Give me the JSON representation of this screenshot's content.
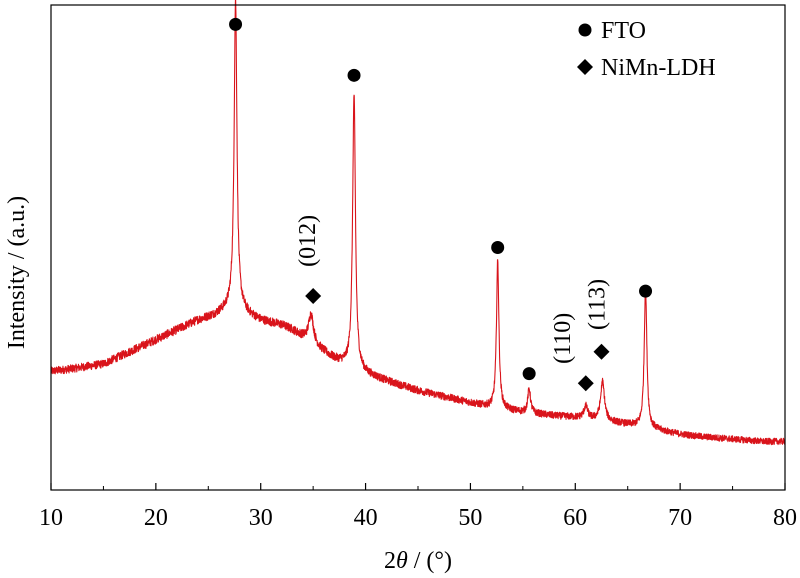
{
  "chart_data": {
    "type": "line",
    "xlabel_prefix": "2",
    "xlabel_theta": "θ",
    "xlabel_suffix": " / (°)",
    "ylabel": "Intensity / (a.u.)",
    "xlim": [
      10,
      80
    ],
    "ylim": [
      0,
      100
    ],
    "x_ticks": [
      10,
      20,
      30,
      40,
      50,
      60,
      70,
      80
    ],
    "show_y_ticks": false,
    "grid": false,
    "line_color": "#d9141b",
    "marker_color": "#000000",
    "legend": {
      "placement": "top-right",
      "entries": [
        {
          "marker": "circle",
          "label": "FTO"
        },
        {
          "marker": "diamond",
          "label": "NiMn-LDH"
        }
      ]
    },
    "baseline": [
      [
        10,
        24.5
      ],
      [
        12,
        25
      ],
      [
        15,
        26
      ],
      [
        18,
        29
      ],
      [
        20,
        31
      ],
      [
        22,
        33
      ],
      [
        24,
        35
      ],
      [
        25.5,
        36
      ],
      [
        26.5,
        37
      ],
      [
        27.2,
        37.5
      ],
      [
        28.2,
        37
      ],
      [
        29,
        36
      ],
      [
        30,
        35
      ],
      [
        31,
        34.5
      ],
      [
        32,
        34
      ],
      [
        33,
        33
      ],
      [
        34,
        31.5
      ],
      [
        35,
        30
      ],
      [
        36,
        28.5
      ],
      [
        37,
        27
      ],
      [
        38,
        26
      ],
      [
        39,
        25
      ],
      [
        40,
        24
      ],
      [
        42,
        22.5
      ],
      [
        45,
        20.5
      ],
      [
        48,
        19
      ],
      [
        50,
        18
      ],
      [
        52,
        17
      ],
      [
        55,
        16
      ],
      [
        58,
        15.3
      ],
      [
        60,
        15
      ],
      [
        62,
        14.5
      ],
      [
        65,
        13.5
      ],
      [
        68,
        12.3
      ],
      [
        70,
        11.5
      ],
      [
        72,
        11
      ],
      [
        75,
        10.5
      ],
      [
        78,
        10
      ],
      [
        80,
        10
      ]
    ],
    "peaks": [
      {
        "x": 27.6,
        "height": 64,
        "width": 0.16
      },
      {
        "x": 34.8,
        "height": 6,
        "width": 0.28
      },
      {
        "x": 38.9,
        "height": 56.5,
        "width": 0.16
      },
      {
        "x": 52.6,
        "height": 30.5,
        "width": 0.14
      },
      {
        "x": 55.6,
        "height": 5,
        "width": 0.16
      },
      {
        "x": 61.0,
        "height": 2.5,
        "width": 0.22
      },
      {
        "x": 62.6,
        "height": 8,
        "width": 0.22
      },
      {
        "x": 66.7,
        "height": 29,
        "width": 0.15
      }
    ],
    "noise_amplitude": 0.9,
    "markers": [
      {
        "type": "circle",
        "x": 27.6,
        "y": 96
      },
      {
        "type": "circle",
        "x": 38.9,
        "y": 85.5
      },
      {
        "type": "circle",
        "x": 52.6,
        "y": 50
      },
      {
        "type": "circle",
        "x": 55.6,
        "y": 24
      },
      {
        "type": "circle",
        "x": 66.7,
        "y": 41
      },
      {
        "type": "diamond",
        "x": 35.0,
        "y": 40
      },
      {
        "type": "diamond",
        "x": 61.0,
        "y": 22
      },
      {
        "type": "diamond",
        "x": 62.5,
        "y": 28.5
      }
    ],
    "annotations": [
      {
        "text": "(012)",
        "x": 35.2,
        "y": 46,
        "rotation": -90
      },
      {
        "text": "(110)",
        "x": 59.5,
        "y": 26,
        "rotation": -90
      },
      {
        "text": "(113)",
        "x": 62.8,
        "y": 33,
        "rotation": -90
      }
    ]
  }
}
